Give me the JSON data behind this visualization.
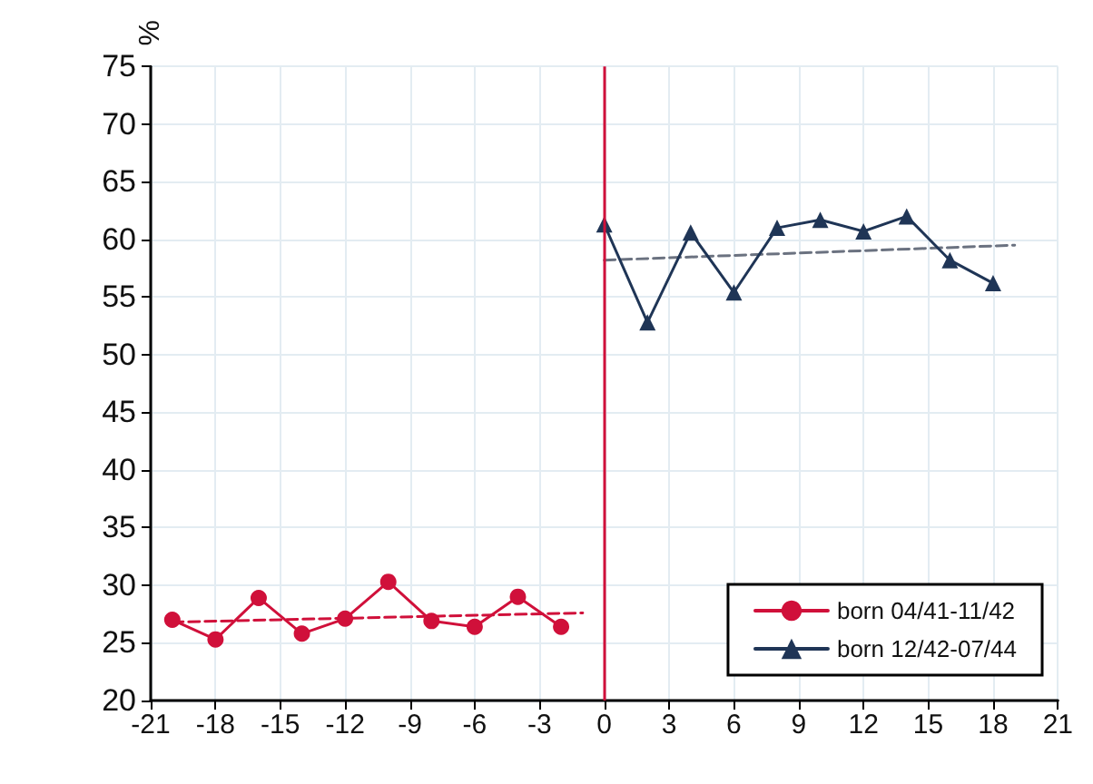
{
  "chart_data": {
    "type": "line",
    "ylabel": "%",
    "xlim": [
      -21,
      21
    ],
    "xticks": [
      -21,
      -18,
      -15,
      -12,
      -9,
      -6,
      -3,
      0,
      3,
      6,
      9,
      12,
      15,
      18,
      21
    ],
    "ylim": [
      20,
      75
    ],
    "yticks": [
      20,
      25,
      30,
      35,
      40,
      45,
      50,
      55,
      60,
      65,
      70,
      75
    ],
    "grid": true,
    "legend": "bottom right",
    "line_style": "solid",
    "series": [
      {
        "name": "born 04/41-11/42",
        "color": "#d0103a",
        "marker": "circle",
        "x": [
          -20,
          -18,
          -16,
          -14,
          -12,
          -10,
          -8,
          -6,
          -4,
          -2
        ],
        "values": [
          27.0,
          25.3,
          28.9,
          25.8,
          27.1,
          30.3,
          26.9,
          26.4,
          29.0,
          26.4
        ]
      },
      {
        "name": "born 12/42-07/44",
        "color": "#1f3556",
        "marker": "triangle",
        "x": [
          0,
          2,
          4,
          6,
          8,
          10,
          12,
          14,
          16,
          18
        ],
        "values": [
          61.3,
          52.8,
          60.6,
          55.4,
          61.0,
          61.7,
          60.7,
          62.0,
          58.2,
          56.2
        ]
      },
      {
        "color": "#d0103a",
        "marker": "none",
        "line_style": "dashed",
        "x": [
          -20,
          -1
        ],
        "values": [
          26.8,
          27.6
        ]
      },
      {
        "color": "#6b7280",
        "marker": "none",
        "line_style": "dashed",
        "x": [
          0,
          19
        ],
        "values": [
          58.2,
          59.5
        ]
      }
    ],
    "ref_lines": [
      {
        "axis": "x",
        "value": 0,
        "color": "#d0103a"
      }
    ]
  }
}
